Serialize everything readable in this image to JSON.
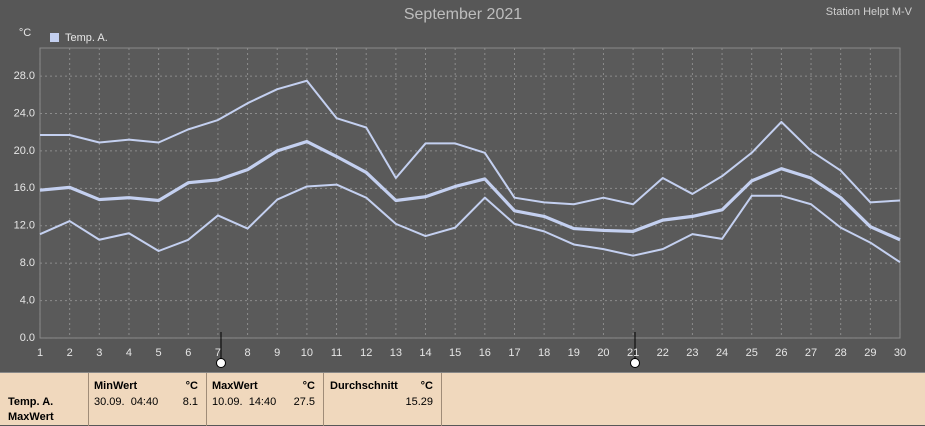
{
  "chart_data": {
    "type": "line",
    "title": "September 2021",
    "station": "Station Helpt M-V",
    "y_unit": "°C",
    "x": [
      1,
      2,
      3,
      4,
      5,
      6,
      7,
      8,
      9,
      10,
      11,
      12,
      13,
      14,
      15,
      16,
      17,
      18,
      19,
      20,
      21,
      22,
      23,
      24,
      25,
      26,
      27,
      28,
      29,
      30
    ],
    "xlim": [
      1,
      30
    ],
    "xticks": [
      1,
      2,
      3,
      4,
      5,
      6,
      7,
      8,
      9,
      10,
      11,
      12,
      13,
      14,
      15,
      16,
      17,
      18,
      19,
      20,
      21,
      22,
      23,
      24,
      25,
      26,
      27,
      28,
      29,
      30
    ],
    "ylim": [
      0,
      31
    ],
    "yticks": [
      {
        "value": 0,
        "label": "0.0"
      },
      {
        "value": 4,
        "label": "4.0"
      },
      {
        "value": 8,
        "label": "8.0"
      },
      {
        "value": 12,
        "label": "12.0"
      },
      {
        "value": 16,
        "label": "16.0"
      },
      {
        "value": 20,
        "label": "20.0"
      },
      {
        "value": 24,
        "label": "24.0"
      },
      {
        "value": 28,
        "label": "28.0"
      }
    ],
    "grid": true,
    "series": [
      {
        "name": "Temp. A.",
        "color": "#c4d0f0",
        "max": [
          21.7,
          21.7,
          20.9,
          21.2,
          20.9,
          22.3,
          23.3,
          25.1,
          26.6,
          27.5,
          23.5,
          22.5,
          17.1,
          20.8,
          20.8,
          19.8,
          15.0,
          14.5,
          14.3,
          15.0,
          14.3,
          17.1,
          15.4,
          17.3,
          19.8,
          23.1,
          20.0,
          17.9,
          14.5,
          14.7
        ],
        "mean": [
          15.8,
          16.1,
          14.8,
          15.0,
          14.7,
          16.6,
          16.9,
          18.0,
          20.0,
          21.0,
          19.4,
          17.7,
          14.7,
          15.1,
          16.2,
          17.0,
          13.6,
          13.0,
          11.7,
          11.5,
          11.4,
          12.6,
          13.0,
          13.7,
          16.8,
          18.1,
          17.1,
          15.0,
          11.9,
          10.5
        ],
        "min": [
          11.1,
          12.5,
          10.5,
          11.2,
          9.3,
          10.5,
          13.1,
          11.7,
          14.8,
          16.2,
          16.4,
          15.0,
          12.2,
          10.9,
          11.8,
          15.0,
          12.2,
          11.4,
          10.0,
          9.5,
          8.8,
          9.5,
          11.1,
          10.6,
          15.2,
          15.2,
          14.3,
          11.8,
          10.2,
          8.1
        ]
      }
    ]
  },
  "stats_panel": {
    "row_label": [
      "Temp. A.",
      "MaxWert"
    ],
    "columns": [
      {
        "title": "MinWert",
        "unit": "°C",
        "time": "30.09.  04:40",
        "value": "8.1"
      },
      {
        "title": "MaxWert",
        "unit": "°C",
        "time": "10.09.  14:40",
        "value": "27.5"
      },
      {
        "title": "Durchschnitt",
        "unit": "°C",
        "value": "15.29"
      }
    ]
  }
}
